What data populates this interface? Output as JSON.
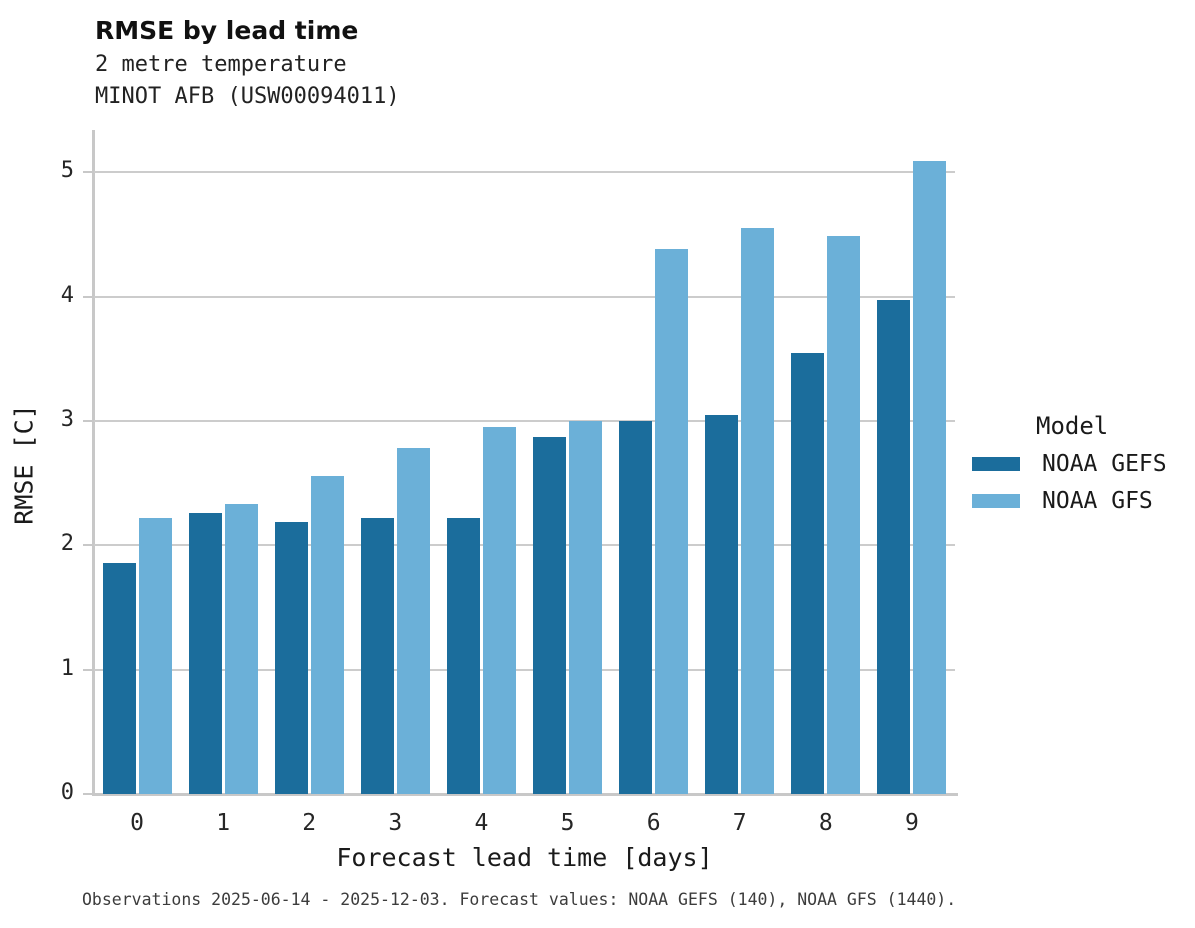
{
  "header": {
    "title": "RMSE by lead time",
    "subtitle1": "2 metre temperature",
    "subtitle2": "MINOT AFB (USW00094011)"
  },
  "legend": {
    "title": "Model"
  },
  "caption": "Observations 2025-06-14 - 2025-12-03. Forecast values: NOAA GEFS (140), NOAA GFS (1440).",
  "colors": {
    "gefs": "#1b6d9c",
    "gfs": "#6bb0d8",
    "grid": "#cccccc",
    "spine": "#c8c8c8"
  },
  "chart_data": {
    "type": "bar",
    "title": "RMSE by lead time",
    "subtitle": "2 metre temperature — MINOT AFB (USW00094011)",
    "xlabel": "Forecast lead time [days]",
    "ylabel": "RMSE [C]",
    "categories": [
      "0",
      "1",
      "2",
      "3",
      "4",
      "5",
      "6",
      "7",
      "8",
      "9"
    ],
    "series": [
      {
        "name": "NOAA GEFS",
        "color": "#1b6d9c",
        "values": [
          1.86,
          2.26,
          2.19,
          2.22,
          2.22,
          2.87,
          3.0,
          3.05,
          3.55,
          3.97
        ]
      },
      {
        "name": "NOAA GFS",
        "color": "#6bb0d8",
        "values": [
          2.22,
          2.33,
          2.56,
          2.78,
          2.95,
          3.0,
          4.38,
          4.55,
          4.49,
          5.09
        ]
      }
    ],
    "yticks": [
      0,
      1,
      2,
      3,
      4,
      5
    ],
    "ylim": [
      0,
      5.34
    ],
    "grid": "horizontal",
    "legend_position": "right"
  }
}
